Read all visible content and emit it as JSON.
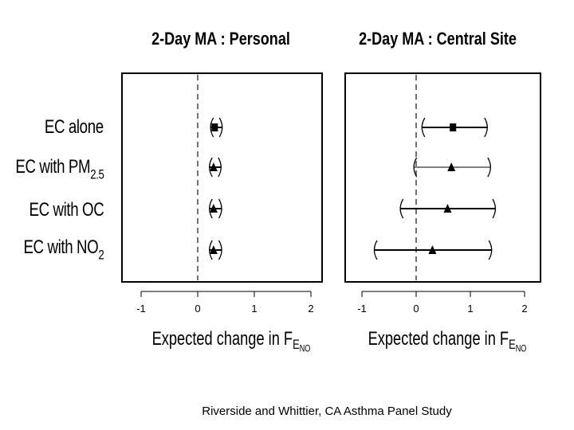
{
  "caption": "Riverside and Whittier, CA Asthma Panel Study",
  "row_labels": [
    {
      "main": "EC alone",
      "sub": ""
    },
    {
      "main": "EC with PM",
      "sub": "2.5"
    },
    {
      "main": "EC with OC",
      "sub": ""
    },
    {
      "main": "EC with NO",
      "sub": "2"
    }
  ],
  "xlabel": {
    "main": "Expected change in F",
    "sub": "E",
    "subsub": "NO"
  },
  "chart_data": [
    {
      "type": "scatter",
      "title": "2-Day MA : Personal",
      "xlim": [
        -1.1,
        2.1
      ],
      "xticks": [
        -1,
        0,
        1,
        2
      ],
      "reference_line": 0,
      "series": [
        {
          "label": "EC alone",
          "estimate": 0.3,
          "lower": 0.22,
          "upper": 0.44,
          "marker": "square"
        },
        {
          "label": "EC with PM2.5",
          "estimate": 0.28,
          "lower": 0.2,
          "upper": 0.42,
          "marker": "triangle"
        },
        {
          "label": "EC with OC",
          "estimate": 0.28,
          "lower": 0.2,
          "upper": 0.43,
          "marker": "triangle"
        },
        {
          "label": "EC with NO2",
          "estimate": 0.28,
          "lower": 0.2,
          "upper": 0.43,
          "marker": "triangle"
        }
      ]
    },
    {
      "type": "scatter",
      "title": "2-Day MA : Central Site",
      "xlim": [
        -1.1,
        2.1
      ],
      "xticks": [
        -1,
        0,
        1,
        2
      ],
      "reference_line": 0,
      "series": [
        {
          "label": "EC alone",
          "estimate": 0.68,
          "lower": 0.1,
          "upper": 1.32,
          "marker": "square"
        },
        {
          "label": "EC with PM2.5",
          "estimate": 0.65,
          "lower": -0.05,
          "upper": 1.38,
          "marker": "triangle"
        },
        {
          "label": "EC with OC",
          "estimate": 0.58,
          "lower": -0.3,
          "upper": 1.47,
          "marker": "triangle"
        },
        {
          "label": "EC with NO2",
          "estimate": 0.3,
          "lower": -0.78,
          "upper": 1.4,
          "marker": "triangle"
        }
      ]
    }
  ]
}
